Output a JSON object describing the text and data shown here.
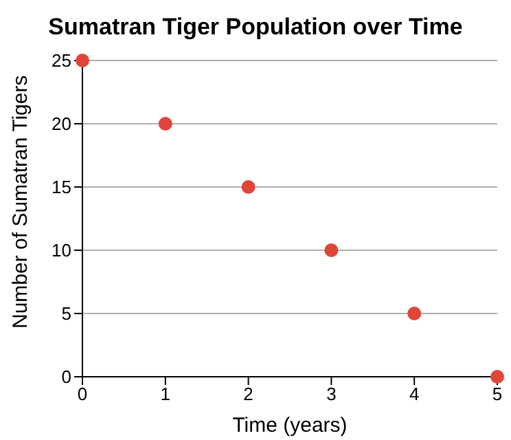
{
  "chart_data": {
    "type": "scatter",
    "title": "Sumatran Tiger Population over Time",
    "xlabel": "Time (years)",
    "ylabel": "Number of Sumatran Tigers",
    "x": [
      0,
      1,
      2,
      3,
      4,
      5
    ],
    "series": [
      {
        "color": "#e0453a",
        "values": [
          25,
          20,
          15,
          10,
          5,
          0
        ]
      }
    ],
    "xlim": [
      0,
      5
    ],
    "xticks": [
      0,
      1,
      2,
      3,
      4,
      5
    ],
    "ylim": [
      0,
      25
    ],
    "yticks": [
      0,
      5,
      10,
      15,
      20,
      25
    ],
    "grid": "y",
    "marker": "circle"
  }
}
